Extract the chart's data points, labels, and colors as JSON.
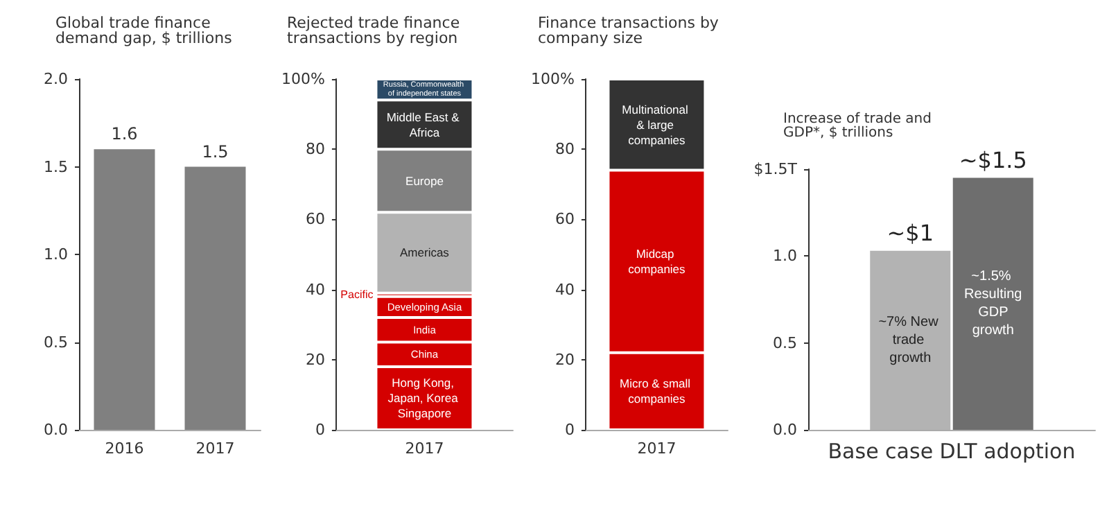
{
  "chart_data": [
    {
      "type": "bar",
      "title": "Global trade finance demand gap, $ trillions",
      "categories": [
        "2016",
        "2017"
      ],
      "values": [
        1.6,
        1.5
      ],
      "color": "#808080",
      "data_labels": true,
      "ylim": [
        0,
        2
      ],
      "yticks": [
        {
          "value": 0,
          "label": "0.0"
        },
        0.5,
        {
          "value": 1,
          "label": "1.0"
        },
        1.5,
        {
          "value": 2,
          "label": "2.0"
        }
      ],
      "grid": false,
      "legend": false
    },
    {
      "type": "bar",
      "title": "Rejected trade finance transactions by region",
      "stacked": true,
      "categories": [
        "2017"
      ],
      "series": [
        {
          "name": "Hong Kong, Japan, Korea Singapore",
          "color": "#d40000",
          "values": [
            18
          ]
        },
        {
          "name": "China",
          "color": "#d40000",
          "values": [
            7
          ]
        },
        {
          "name": "India",
          "color": "#d40000",
          "values": [
            7
          ]
        },
        {
          "name": "Developing Asia",
          "color": "#d40000",
          "values": [
            6
          ]
        },
        {
          "name": "Pacific",
          "color": "#d40000",
          "values": [
            1
          ]
        },
        {
          "name": "Americas",
          "color": "#b3b3b3",
          "values": [
            23
          ]
        },
        {
          "name": "Europe",
          "color": "#808080",
          "values": [
            18
          ]
        },
        {
          "name": "Middle East & Africa",
          "color": "#333333",
          "values": [
            14
          ]
        },
        {
          "name": "Russia, Commonwealth of independent states",
          "color": "#2b4a66",
          "values": [
            6
          ]
        }
      ],
      "ylim": [
        0,
        100
      ],
      "yticks": [
        0,
        20,
        40,
        60,
        80,
        {
          "value": 100,
          "label": "100%"
        }
      ],
      "grid": false,
      "legend": false
    },
    {
      "type": "bar",
      "title": "Finance transactions by company size",
      "stacked": true,
      "categories": [
        "2017"
      ],
      "series": [
        {
          "name": "Micro & small companies",
          "color": "#d40000",
          "values": [
            22
          ]
        },
        {
          "name": "Midcap companies",
          "color": "#d40000",
          "values": [
            52
          ]
        },
        {
          "name": "Multinational & large companies",
          "color": "#333333",
          "values": [
            26
          ]
        }
      ],
      "ylim": [
        0,
        100
      ],
      "yticks": [
        0,
        20,
        40,
        60,
        80,
        {
          "value": 100,
          "label": "100%"
        }
      ],
      "grid": false,
      "legend": false
    },
    {
      "type": "bar",
      "title": "Increase of trade and GDP*, $ trillions",
      "categories": [
        "Base case DLT adoption"
      ],
      "series": [
        {
          "name": "~7% New trade growth",
          "color": "#b3b3b3",
          "values": [
            1.03
          ],
          "value_labels": [
            "~$1"
          ]
        },
        {
          "name": "~1.5% Resulting GDP growth",
          "color": "#6e6e6e",
          "values": [
            1.45
          ],
          "value_labels": [
            "~$1.5"
          ]
        }
      ],
      "ylim": [
        0,
        1.5
      ],
      "yticks": [
        {
          "value": 0,
          "label": "0.0"
        },
        0.5,
        {
          "value": 1,
          "label": "1.0"
        },
        {
          "value": 1.5,
          "label": "$1.5T"
        }
      ],
      "grid": false,
      "legend": false
    }
  ]
}
